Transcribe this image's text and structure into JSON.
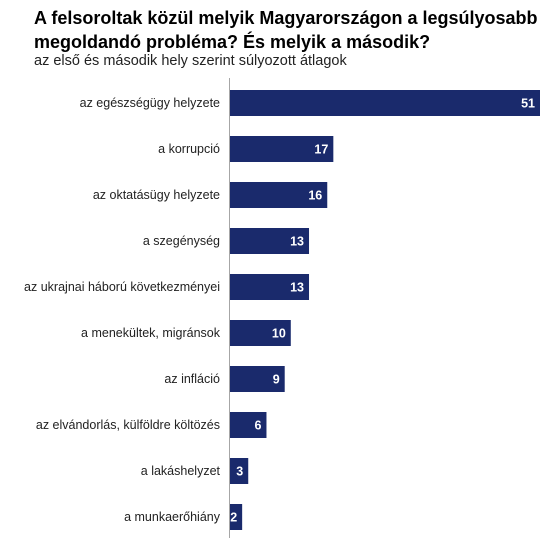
{
  "chart_data": {
    "type": "bar",
    "orientation": "horizontal",
    "title": "A felsoroltak közül melyik Magyarországon a legsúlyosabb megoldandó probléma? És melyik a második?",
    "subtitle": "az első és második hely szerint súlyozott átlagok",
    "categories": [
      "az egészségügy helyzete",
      "a korrupció",
      "az oktatásügy helyzete",
      "a szegénység",
      "az ukrajnai háború következményei",
      "a menekültek, migránsok",
      "az infláció",
      "az elvándorlás, külföldre költözés",
      "a lakáshelyzet",
      "a munkaerőhiány"
    ],
    "values": [
      51,
      17,
      16,
      13,
      13,
      10,
      9,
      6,
      3,
      2
    ],
    "xlim": [
      0,
      51
    ],
    "grid": false,
    "data_labels": "inside-end",
    "bar_color": "#1a2a6c",
    "label_color": "#ffffff"
  }
}
